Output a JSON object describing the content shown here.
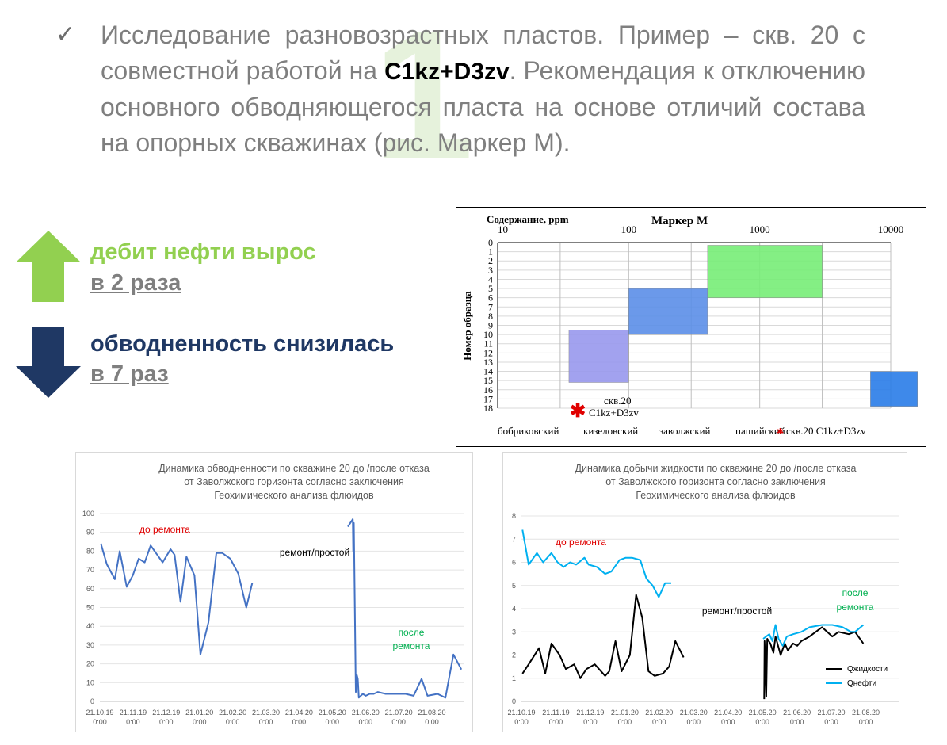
{
  "slide": {
    "big_number": "1",
    "check_mark": "✓",
    "paragraph_part1": "Исследование разновозрастных пластов. Пример – скв. 20 с совместной работой на ",
    "paragraph_highlight": "C1kz+D3zv",
    "paragraph_part2": ". Рекомендация к отключению основного обводняющегося пласта на основе отличий состава на опорных скважинах (рис. Маркер М).",
    "oil_rate_title": "дебит нефти вырос",
    "oil_rate_value": "в 2 раза",
    "water_cut_title": "обводненность снизилась",
    "water_cut_value": "в 7 раз",
    "colors": {
      "green": "#92d050",
      "navy": "#1f3864",
      "gray_text": "#7f7f7f"
    },
    "icons": [
      "arrow-up-icon",
      "arrow-down-icon",
      "check-icon"
    ]
  },
  "chart_data": [
    {
      "type": "bar",
      "title": "Маркер  М",
      "xlabel": "Содержание, ppm",
      "ylabel": "Номер образца",
      "x_scale": "log",
      "x_ticks": [
        "10",
        "100",
        "1000",
        "10000"
      ],
      "y_ticks": [
        "0",
        "1",
        "2",
        "3",
        "4",
        "5",
        "6",
        "7",
        "8",
        "9",
        "10",
        "11",
        "12",
        "13",
        "14",
        "15",
        "16",
        "17",
        "18"
      ],
      "ylim": [
        0,
        18
      ],
      "grid": true,
      "legend": "bottom",
      "series": [
        {
          "name": "бобриковский",
          "color": "#9999ee",
          "x_range": [
            35,
            100
          ],
          "y_range": [
            9.5,
            15.2
          ]
        },
        {
          "name": "кизеловский",
          "color": "#5b8fe8",
          "x_range": [
            100,
            400
          ],
          "y_range": [
            5,
            10
          ]
        },
        {
          "name": "заволжский",
          "color": "#77ee77",
          "x_range": [
            400,
            3000
          ],
          "y_range": [
            0.3,
            6
          ]
        },
        {
          "name": "пашийский",
          "color": "#2a7de8",
          "x_range": [
            7000,
            16000
          ],
          "y_range": [
            14,
            17.8
          ]
        }
      ],
      "point": {
        "name": "скв.20 C1kz+D3zv",
        "label_line1": "скв.20",
        "label_line2": "C1kz+D3zv",
        "x": 30,
        "y": 18,
        "color": "#e00000"
      }
    },
    {
      "type": "line",
      "title_lines": [
        "Динамика обводненности по скважине 20 до /после отказа",
        "от Заволжского горизонта согласно заключения",
        "Геохимического анализа флюидов"
      ],
      "x_ticks": [
        [
          "21.10.19",
          "0:00"
        ],
        [
          "21.11.19",
          "0:00"
        ],
        [
          "21.12.19",
          "0:00"
        ],
        [
          "21.01.20",
          "0:00"
        ],
        [
          "21.02.20",
          "0:00"
        ],
        [
          "21.03.20",
          "0:00"
        ],
        [
          "21.04.20",
          "0:00"
        ],
        [
          "21.05.20",
          "0:00"
        ],
        [
          "21.06.20",
          "0:00"
        ],
        [
          "21.07.20",
          "0:00"
        ],
        [
          "21.08.20",
          "0:00"
        ]
      ],
      "y_ticks": [
        "0",
        "10",
        "20",
        "30",
        "40",
        "50",
        "60",
        "70",
        "80",
        "90",
        "100"
      ],
      "ylim": [
        0,
        100
      ],
      "annotations": [
        {
          "text": "до ремонта",
          "color": "#e00000"
        },
        {
          "text": "ремонт/простой",
          "color": "#000000"
        },
        {
          "text": "после",
          "color": "#00b050"
        },
        {
          "text": "ремонта",
          "color": "#00b050"
        }
      ],
      "series": [
        {
          "color": "#4472c4",
          "points": [
            [
              0,
              84
            ],
            [
              0.3,
              73
            ],
            [
              0.7,
              65
            ],
            [
              0.95,
              80
            ],
            [
              1.3,
              61
            ],
            [
              1.6,
              67
            ],
            [
              1.9,
              76
            ],
            [
              2.2,
              74
            ],
            [
              2.5,
              83
            ],
            [
              3.1,
              74
            ],
            [
              3.5,
              81
            ],
            [
              3.7,
              78
            ],
            [
              4.0,
              53
            ],
            [
              4.3,
              77
            ],
            [
              4.7,
              67
            ],
            [
              5.0,
              25
            ],
            [
              5.4,
              42
            ],
            [
              5.8,
              79
            ],
            [
              6.1,
              79
            ],
            [
              6.5,
              76
            ],
            [
              6.9,
              68
            ],
            [
              7.3,
              50
            ],
            [
              7.6,
              63
            ]
          ]
        },
        {
          "color": "#4472c4",
          "points": [
            [
              12.4,
              93
            ],
            [
              12.65,
              97
            ],
            [
              12.67,
              80
            ],
            [
              12.7,
              95
            ],
            [
              12.8,
              5
            ],
            [
              12.85,
              14
            ],
            [
              12.9,
              12
            ],
            [
              12.95,
              2
            ],
            [
              13.05,
              3
            ],
            [
              13.15,
              4
            ],
            [
              13.3,
              3
            ],
            [
              13.5,
              4
            ],
            [
              13.7,
              4
            ],
            [
              13.9,
              5
            ],
            [
              14.3,
              4
            ],
            [
              14.8,
              4
            ],
            [
              15.3,
              4
            ],
            [
              15.7,
              3
            ],
            [
              16.1,
              12
            ],
            [
              16.4,
              3
            ],
            [
              16.9,
              4
            ],
            [
              17.3,
              2
            ],
            [
              17.7,
              25
            ],
            [
              18.1,
              17
            ]
          ]
        }
      ]
    },
    {
      "type": "line",
      "title_lines": [
        "Динамика добычи жидкости по скважине 20 до /после отказа",
        "от Заволжского горизонта согласно заключения",
        "Геохимического анализа флюидов"
      ],
      "x_ticks": [
        [
          "21.10.19",
          "0:00"
        ],
        [
          "21.11.19",
          "0:00"
        ],
        [
          "21.12.19",
          "0:00"
        ],
        [
          "21.01.20",
          "0:00"
        ],
        [
          "21.02.20",
          "0:00"
        ],
        [
          "21.03.20",
          "0:00"
        ],
        [
          "21.04.20",
          "0:00"
        ],
        [
          "21.05.20",
          "0:00"
        ],
        [
          "21.06.20",
          "0:00"
        ],
        [
          "21.07.20",
          "0:00"
        ],
        [
          "21.08.20",
          "0:00"
        ]
      ],
      "y_ticks": [
        "0",
        "1",
        "2",
        "3",
        "4",
        "5",
        "6",
        "7",
        "8"
      ],
      "ylim": [
        0,
        8
      ],
      "annotations": [
        {
          "text": "до ремонта",
          "color": "#e00000"
        },
        {
          "text": "ремонт/простой",
          "color": "#000000"
        },
        {
          "text": "после",
          "color": "#00b050"
        },
        {
          "text": "ремонта",
          "color": "#00b050"
        }
      ],
      "legend": "bottom-right",
      "series": [
        {
          "name": "Qжидкости",
          "color": "#000000",
          "points": [
            [
              0,
              1.2
            ],
            [
              0.3,
              1.6
            ],
            [
              0.8,
              2.3
            ],
            [
              1.1,
              1.2
            ],
            [
              1.4,
              2.5
            ],
            [
              1.8,
              2.0
            ],
            [
              2.1,
              1.4
            ],
            [
              2.5,
              1.6
            ],
            [
              2.8,
              1.0
            ],
            [
              3.1,
              1.4
            ],
            [
              3.5,
              1.6
            ],
            [
              4.0,
              1.1
            ],
            [
              4.2,
              1.3
            ],
            [
              4.5,
              2.6
            ],
            [
              4.8,
              1.3
            ],
            [
              5.2,
              2.0
            ],
            [
              5.5,
              4.6
            ],
            [
              5.8,
              3.6
            ],
            [
              6.1,
              1.3
            ],
            [
              6.4,
              1.1
            ],
            [
              6.8,
              1.2
            ],
            [
              7.1,
              1.5
            ],
            [
              7.4,
              2.6
            ],
            [
              7.8,
              1.9
            ]
          ]
        },
        {
          "name": "Qнефти",
          "color": "#00b0f0",
          "points": [
            [
              0,
              7.4
            ],
            [
              0.3,
              5.9
            ],
            [
              0.7,
              6.4
            ],
            [
              1.0,
              6.0
            ],
            [
              1.4,
              6.4
            ],
            [
              1.7,
              6.0
            ],
            [
              2.0,
              5.8
            ],
            [
              2.3,
              6.0
            ],
            [
              2.6,
              5.9
            ],
            [
              3.0,
              6.2
            ],
            [
              3.2,
              5.9
            ],
            [
              3.6,
              5.8
            ],
            [
              4.0,
              5.5
            ],
            [
              4.3,
              5.6
            ],
            [
              4.7,
              6.1
            ],
            [
              5.0,
              6.2
            ],
            [
              5.3,
              6.2
            ],
            [
              5.7,
              6.1
            ],
            [
              6.0,
              5.3
            ],
            [
              6.3,
              5.0
            ],
            [
              6.6,
              4.5
            ],
            [
              6.9,
              5.1
            ],
            [
              7.2,
              5.1
            ]
          ]
        },
        {
          "name": "Qжидкости",
          "color": "#000000",
          "points": [
            [
              11.7,
              0.1
            ],
            [
              11.72,
              2.6
            ],
            [
              11.8,
              0.2
            ],
            [
              11.85,
              2.7
            ],
            [
              12.0,
              2.5
            ],
            [
              12.15,
              2.1
            ],
            [
              12.25,
              2.8
            ],
            [
              12.5,
              2.0
            ],
            [
              12.7,
              2.5
            ],
            [
              12.85,
              2.2
            ],
            [
              13.1,
              2.5
            ],
            [
              13.3,
              2.4
            ],
            [
              13.5,
              2.6
            ],
            [
              13.9,
              2.8
            ],
            [
              14.5,
              3.2
            ],
            [
              15.0,
              2.8
            ],
            [
              15.3,
              3.0
            ],
            [
              15.8,
              2.9
            ],
            [
              16.1,
              3.0
            ],
            [
              16.5,
              2.5
            ]
          ]
        },
        {
          "name": "Qнефти",
          "color": "#00b0f0",
          "points": [
            [
              11.65,
              2.7
            ],
            [
              11.8,
              2.8
            ],
            [
              11.95,
              2.9
            ],
            [
              12.1,
              2.6
            ],
            [
              12.25,
              3.3
            ],
            [
              12.4,
              2.7
            ],
            [
              12.6,
              2.4
            ],
            [
              12.8,
              2.8
            ],
            [
              13.1,
              2.9
            ],
            [
              13.5,
              3.0
            ],
            [
              13.9,
              3.2
            ],
            [
              14.5,
              3.3
            ],
            [
              15.0,
              3.3
            ],
            [
              15.5,
              3.2
            ],
            [
              15.9,
              3.0
            ],
            [
              16.1,
              3.0
            ],
            [
              16.5,
              3.3
            ]
          ]
        }
      ]
    }
  ]
}
